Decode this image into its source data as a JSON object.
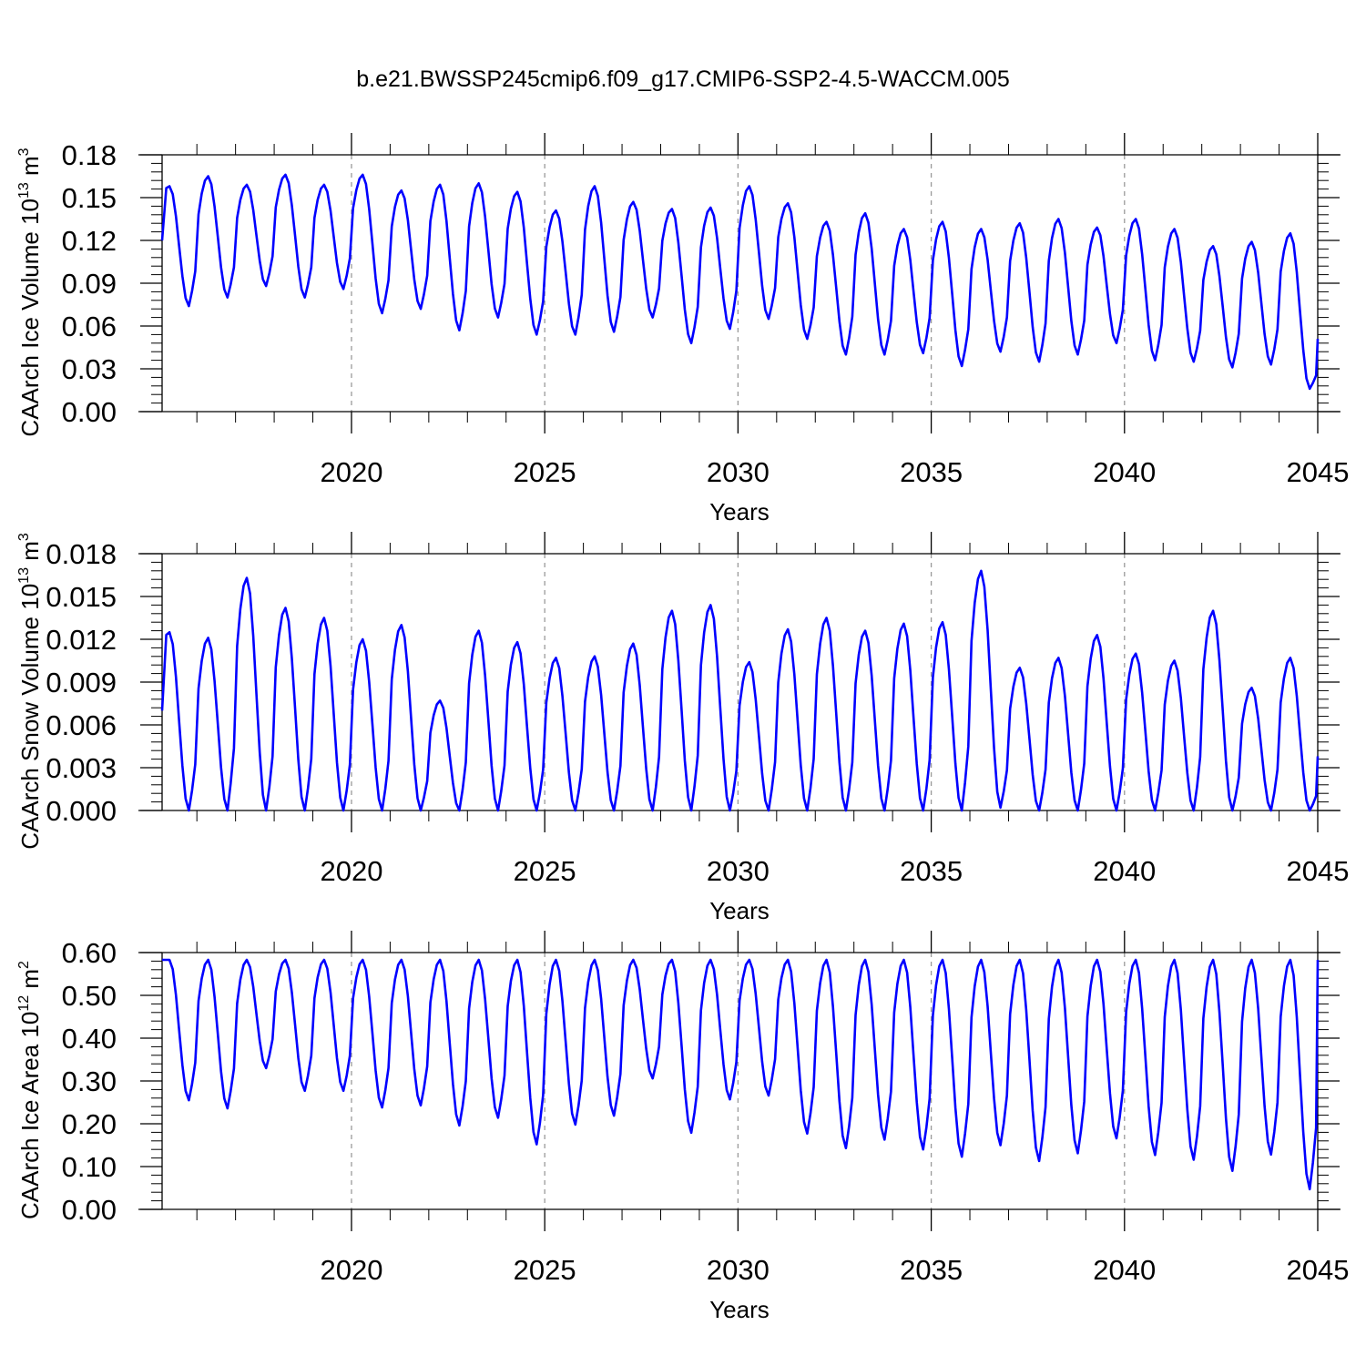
{
  "title": "b.e21.BWSSP245cmip6.f09_g17.CMIP6-SSP2-4.5-WACCM.005",
  "line_color": "#0000ff",
  "chart_data": [
    {
      "type": "line",
      "ylabel": "CAArch Ice Volume 10",
      "ylabel_exp": "13",
      "ylabel_unit": " m",
      "ylabel_unit_exp": "3",
      "xlabel": "Years",
      "xlim": [
        2015.1,
        2045.0
      ],
      "ylim": [
        0,
        0.18
      ],
      "yticks": [
        "0.00",
        "0.03",
        "0.06",
        "0.09",
        "0.12",
        "0.15",
        "0.18"
      ],
      "xticks": [
        "2020",
        "2025",
        "2030",
        "2035",
        "2040",
        "2045"
      ],
      "grid_x": "dashed vertical at 2020, 2025, 2030, 2035, 2040",
      "cycles": [
        {
          "year": 2015,
          "min": 0.074,
          "max": 0.158
        },
        {
          "year": 2016,
          "min": 0.08,
          "max": 0.165
        },
        {
          "year": 2017,
          "min": 0.088,
          "max": 0.159
        },
        {
          "year": 2018,
          "min": 0.08,
          "max": 0.166
        },
        {
          "year": 2019,
          "min": 0.086,
          "max": 0.159
        },
        {
          "year": 2020,
          "min": 0.069,
          "max": 0.166
        },
        {
          "year": 2021,
          "min": 0.072,
          "max": 0.155
        },
        {
          "year": 2022,
          "min": 0.057,
          "max": 0.159
        },
        {
          "year": 2023,
          "min": 0.066,
          "max": 0.16
        },
        {
          "year": 2024,
          "min": 0.054,
          "max": 0.154
        },
        {
          "year": 2025,
          "min": 0.054,
          "max": 0.141
        },
        {
          "year": 2026,
          "min": 0.056,
          "max": 0.158
        },
        {
          "year": 2027,
          "min": 0.066,
          "max": 0.147
        },
        {
          "year": 2028,
          "min": 0.048,
          "max": 0.142
        },
        {
          "year": 2029,
          "min": 0.058,
          "max": 0.143
        },
        {
          "year": 2030,
          "min": 0.065,
          "max": 0.158
        },
        {
          "year": 2031,
          "min": 0.051,
          "max": 0.146
        },
        {
          "year": 2032,
          "min": 0.04,
          "max": 0.133
        },
        {
          "year": 2033,
          "min": 0.04,
          "max": 0.139
        },
        {
          "year": 2034,
          "min": 0.041,
          "max": 0.128
        },
        {
          "year": 2035,
          "min": 0.032,
          "max": 0.133
        },
        {
          "year": 2036,
          "min": 0.042,
          "max": 0.128
        },
        {
          "year": 2037,
          "min": 0.035,
          "max": 0.132
        },
        {
          "year": 2038,
          "min": 0.04,
          "max": 0.135
        },
        {
          "year": 2039,
          "min": 0.048,
          "max": 0.129
        },
        {
          "year": 2040,
          "min": 0.036,
          "max": 0.135
        },
        {
          "year": 2041,
          "min": 0.035,
          "max": 0.128
        },
        {
          "year": 2042,
          "min": 0.031,
          "max": 0.116
        },
        {
          "year": 2043,
          "min": 0.033,
          "max": 0.119
        },
        {
          "year": 2044,
          "min": 0.016,
          "max": 0.125
        }
      ],
      "start_value": 0.12,
      "end_value": 0.051
    },
    {
      "type": "line",
      "ylabel": "CAArch Snow Volume 10",
      "ylabel_exp": "13",
      "ylabel_unit": " m",
      "ylabel_unit_exp": "3",
      "xlabel": "Years",
      "xlim": [
        2015.1,
        2045.0
      ],
      "ylim": [
        0,
        0.018
      ],
      "yticks": [
        "0.000",
        "0.003",
        "0.006",
        "0.009",
        "0.012",
        "0.015",
        "0.018"
      ],
      "xticks": [
        "2020",
        "2025",
        "2030",
        "2035",
        "2040",
        "2045"
      ],
      "grid_x": "dashed vertical at 2020, 2025, 2030, 2035, 2040",
      "cycles": [
        {
          "year": 2015,
          "min": 0.0,
          "max": 0.0125
        },
        {
          "year": 2016,
          "min": 0.0,
          "max": 0.0121
        },
        {
          "year": 2017,
          "min": 0.0,
          "max": 0.0163
        },
        {
          "year": 2018,
          "min": 0.0,
          "max": 0.0142
        },
        {
          "year": 2019,
          "min": 0.0,
          "max": 0.0135
        },
        {
          "year": 2020,
          "min": 0.0,
          "max": 0.012
        },
        {
          "year": 2021,
          "min": 0.0,
          "max": 0.013
        },
        {
          "year": 2022,
          "min": 0.0,
          "max": 0.0077
        },
        {
          "year": 2023,
          "min": 0.0,
          "max": 0.0126
        },
        {
          "year": 2024,
          "min": 0.0,
          "max": 0.0118
        },
        {
          "year": 2025,
          "min": 0.0,
          "max": 0.0107
        },
        {
          "year": 2026,
          "min": 0.0,
          "max": 0.0108
        },
        {
          "year": 2027,
          "min": 0.0,
          "max": 0.0117
        },
        {
          "year": 2028,
          "min": 0.0,
          "max": 0.014
        },
        {
          "year": 2029,
          "min": 0.0,
          "max": 0.0144
        },
        {
          "year": 2030,
          "min": 0.0,
          "max": 0.0104
        },
        {
          "year": 2031,
          "min": 0.0,
          "max": 0.0127
        },
        {
          "year": 2032,
          "min": 0.0,
          "max": 0.0135
        },
        {
          "year": 2033,
          "min": 0.0,
          "max": 0.0126
        },
        {
          "year": 2034,
          "min": 0.0,
          "max": 0.0131
        },
        {
          "year": 2035,
          "min": 0.0,
          "max": 0.0132
        },
        {
          "year": 2036,
          "min": 0.0002,
          "max": 0.0168
        },
        {
          "year": 2037,
          "min": 0.0,
          "max": 0.01
        },
        {
          "year": 2038,
          "min": 0.0,
          "max": 0.0107
        },
        {
          "year": 2039,
          "min": 0.0,
          "max": 0.0123
        },
        {
          "year": 2040,
          "min": 0.0,
          "max": 0.011
        },
        {
          "year": 2041,
          "min": 0.0,
          "max": 0.0105
        },
        {
          "year": 2042,
          "min": 0.0,
          "max": 0.014
        },
        {
          "year": 2043,
          "min": 0.0,
          "max": 0.0086
        },
        {
          "year": 2044,
          "min": 0.0,
          "max": 0.0107
        }
      ],
      "start_value": 0.007,
      "end_value": 0.0038
    },
    {
      "type": "line",
      "ylabel": "CAArch Ice Area 10",
      "ylabel_exp": "12",
      "ylabel_unit": " m",
      "ylabel_unit_exp": "2",
      "xlabel": "Years",
      "xlim": [
        2015.1,
        2045.0
      ],
      "ylim": [
        0,
        0.6
      ],
      "yticks": [
        "0.00",
        "0.10",
        "0.20",
        "0.30",
        "0.40",
        "0.50",
        "0.60"
      ],
      "xticks": [
        "2020",
        "2025",
        "2030",
        "2035",
        "2040",
        "2045"
      ],
      "grid_x": "dashed vertical at 2020, 2025, 2030, 2035, 2040",
      "cycles": [
        {
          "year": 2015,
          "min": 0.255,
          "max": 0.583
        },
        {
          "year": 2016,
          "min": 0.236,
          "max": 0.583
        },
        {
          "year": 2017,
          "min": 0.33,
          "max": 0.583
        },
        {
          "year": 2018,
          "min": 0.277,
          "max": 0.583
        },
        {
          "year": 2019,
          "min": 0.277,
          "max": 0.583
        },
        {
          "year": 2020,
          "min": 0.238,
          "max": 0.583
        },
        {
          "year": 2021,
          "min": 0.243,
          "max": 0.583
        },
        {
          "year": 2022,
          "min": 0.196,
          "max": 0.583
        },
        {
          "year": 2023,
          "min": 0.214,
          "max": 0.583
        },
        {
          "year": 2024,
          "min": 0.152,
          "max": 0.583
        },
        {
          "year": 2025,
          "min": 0.198,
          "max": 0.583
        },
        {
          "year": 2026,
          "min": 0.219,
          "max": 0.583
        },
        {
          "year": 2027,
          "min": 0.306,
          "max": 0.583
        },
        {
          "year": 2028,
          "min": 0.179,
          "max": 0.583
        },
        {
          "year": 2029,
          "min": 0.257,
          "max": 0.583
        },
        {
          "year": 2030,
          "min": 0.266,
          "max": 0.583
        },
        {
          "year": 2031,
          "min": 0.177,
          "max": 0.583
        },
        {
          "year": 2032,
          "min": 0.143,
          "max": 0.583
        },
        {
          "year": 2033,
          "min": 0.163,
          "max": 0.583
        },
        {
          "year": 2034,
          "min": 0.14,
          "max": 0.583
        },
        {
          "year": 2035,
          "min": 0.123,
          "max": 0.583
        },
        {
          "year": 2036,
          "min": 0.15,
          "max": 0.583
        },
        {
          "year": 2037,
          "min": 0.113,
          "max": 0.583
        },
        {
          "year": 2038,
          "min": 0.131,
          "max": 0.583
        },
        {
          "year": 2039,
          "min": 0.166,
          "max": 0.583
        },
        {
          "year": 2040,
          "min": 0.127,
          "max": 0.583
        },
        {
          "year": 2041,
          "min": 0.116,
          "max": 0.583
        },
        {
          "year": 2042,
          "min": 0.09,
          "max": 0.583
        },
        {
          "year": 2043,
          "min": 0.128,
          "max": 0.583
        },
        {
          "year": 2044,
          "min": 0.047,
          "max": 0.583
        }
      ],
      "start_value": 0.583,
      "end_value": 0.583
    }
  ]
}
